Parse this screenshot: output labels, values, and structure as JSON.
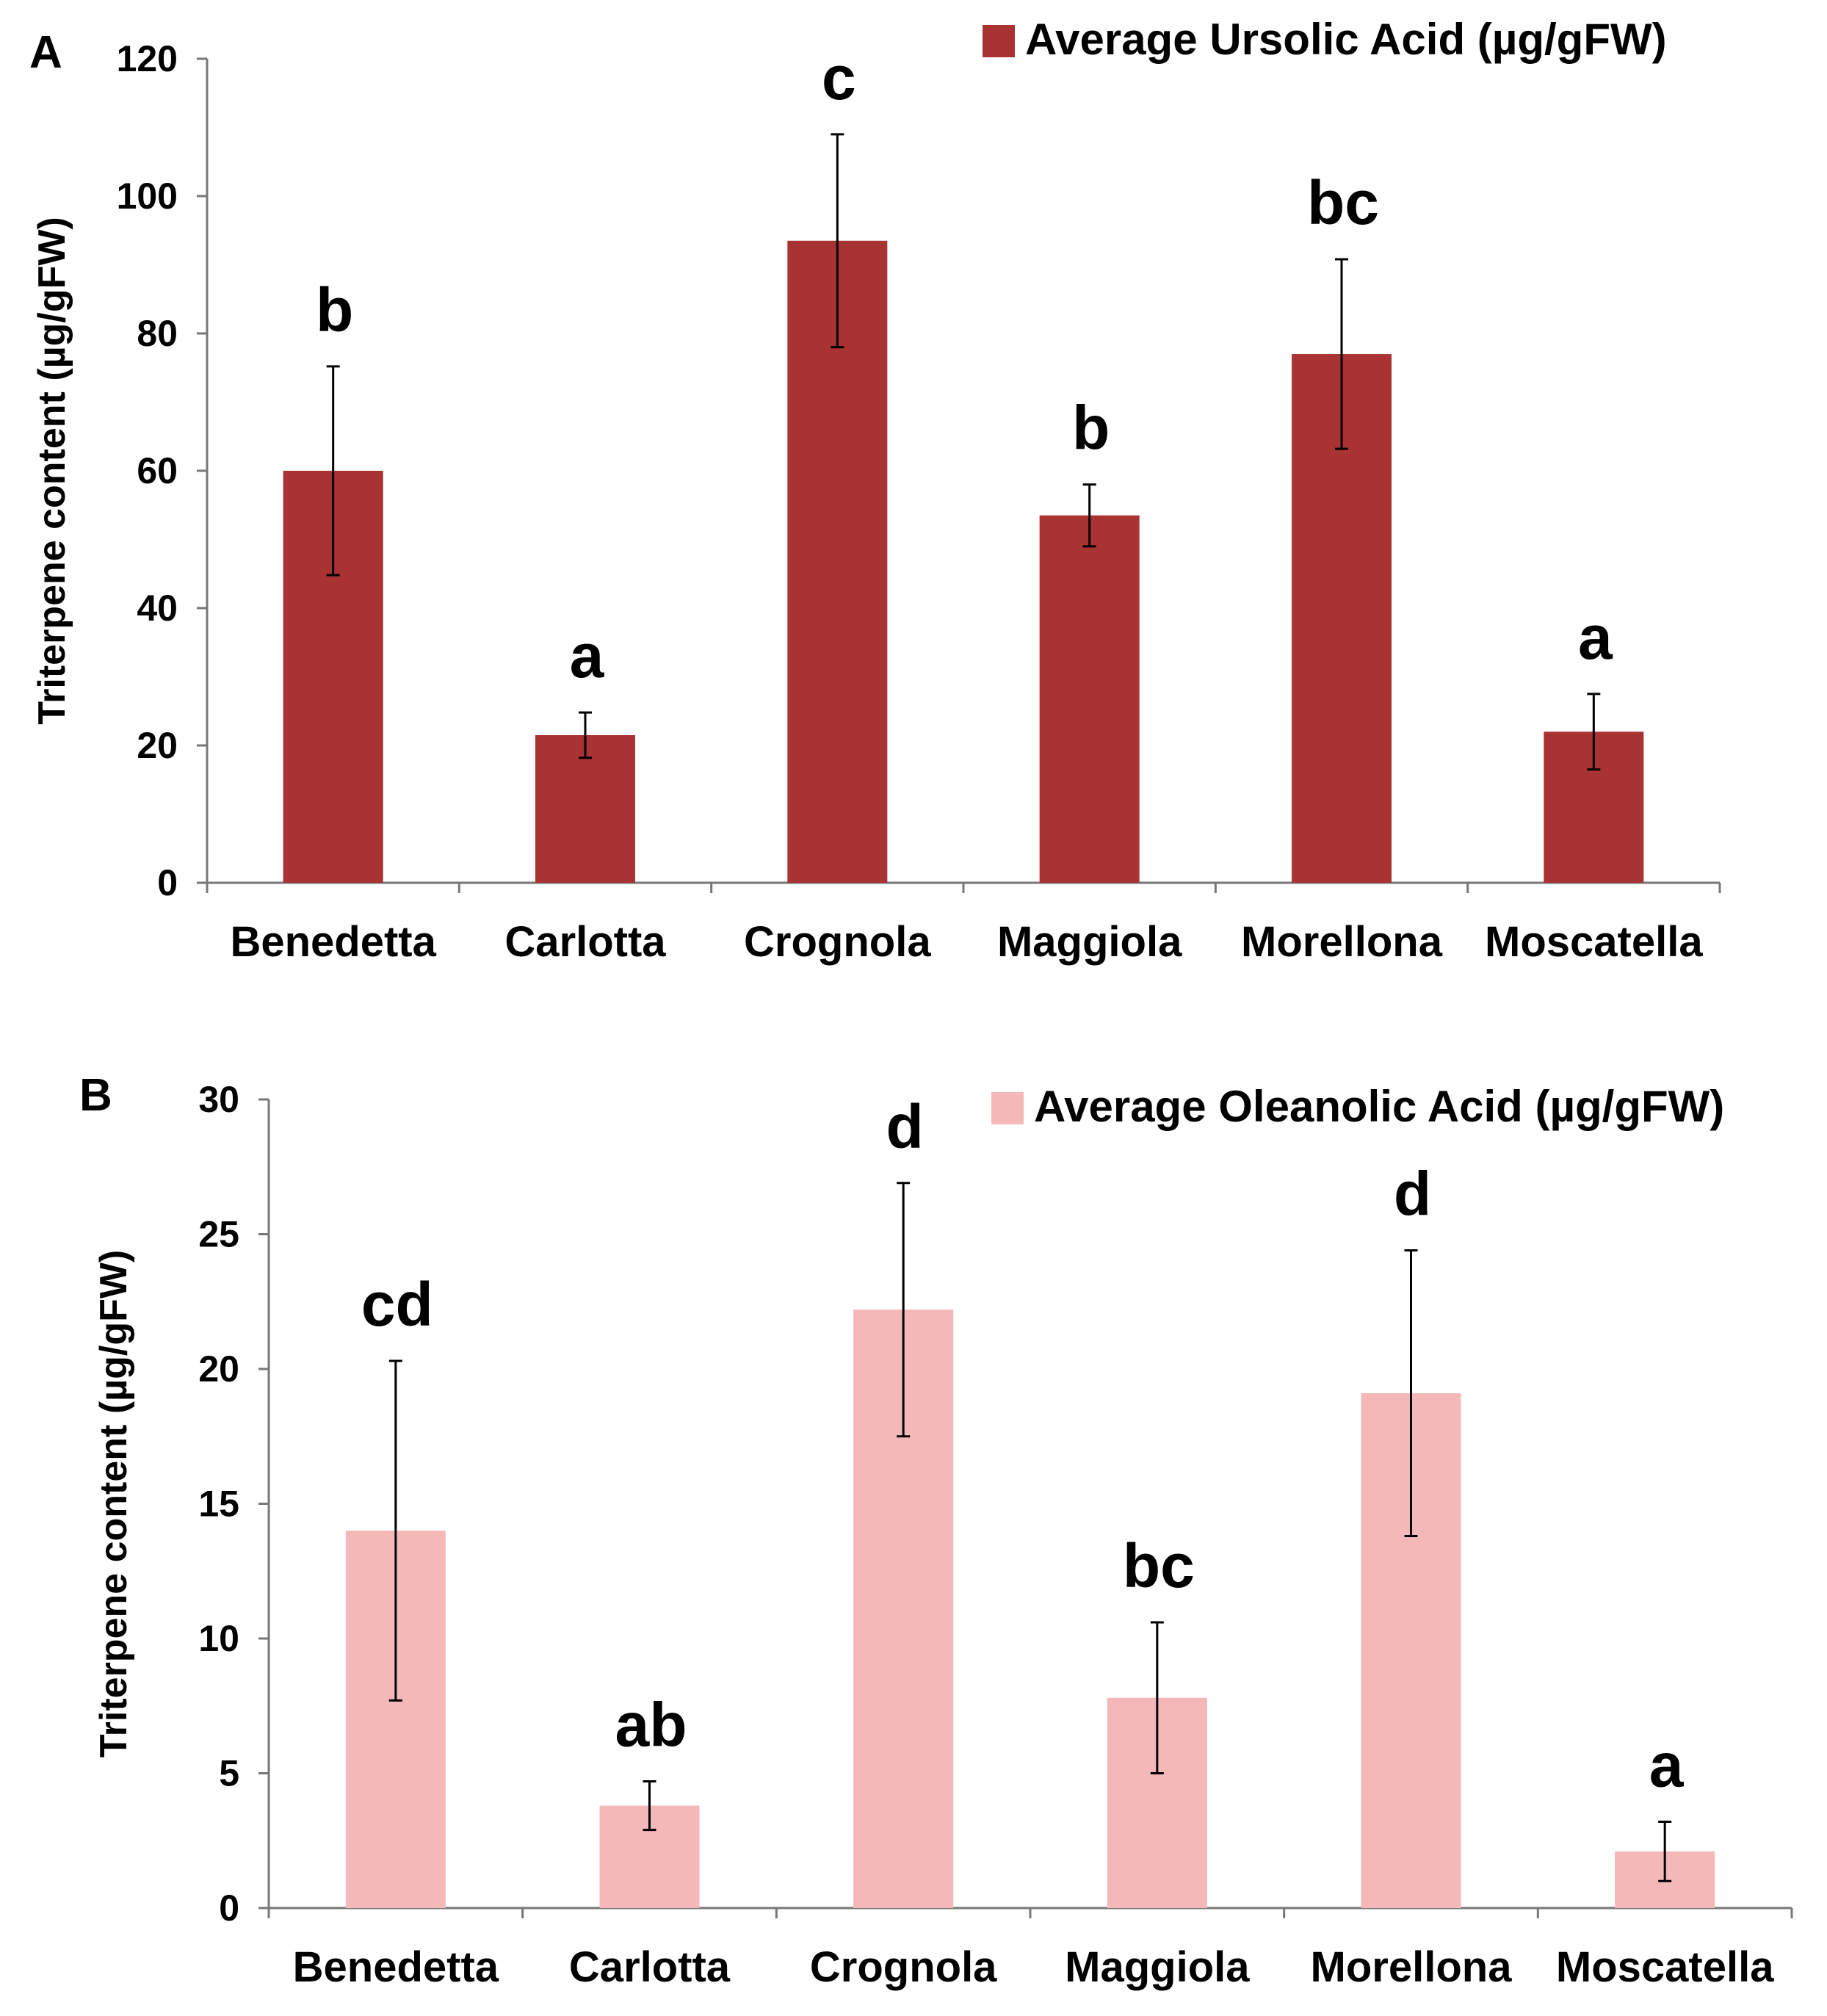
{
  "figure": {
    "panels": [
      "A",
      "B"
    ]
  },
  "chart_data": [
    {
      "panel": "A",
      "type": "bar",
      "categories": [
        "Benedetta",
        "Carlotta",
        "Crognola",
        "Maggiola",
        "Morellona",
        "Moscatella"
      ],
      "series": [
        {
          "name": "Average Ursolic Acid (µg/gFW)",
          "color": "#a93232",
          "values": [
            60,
            21.5,
            93.5,
            53.5,
            77,
            22
          ],
          "errors": [
            15.2,
            3.3,
            15.5,
            4.5,
            13.8,
            5.5
          ]
        }
      ],
      "significance": [
        "b",
        "a",
        "c",
        "b",
        "bc",
        "a"
      ],
      "ylabel": "Triterpene content (µg/gFW)",
      "xlabel": "",
      "ylim": [
        0,
        120
      ],
      "yticks": [
        "0",
        "20",
        "40",
        "60",
        "80",
        "100",
        "120"
      ],
      "legend_position": "top-right"
    },
    {
      "panel": "B",
      "type": "bar",
      "categories": [
        "Benedetta",
        "Carlotta",
        "Crognola",
        "Maggiola",
        "Morellona",
        "Moscatella"
      ],
      "series": [
        {
          "name": "Average Oleanolic Acid (µg/gFW)",
          "color": "#f4b8b8",
          "values": [
            14,
            3.8,
            22.2,
            7.8,
            19.1,
            2.1
          ],
          "errors": [
            6.3,
            0.9,
            4.7,
            2.8,
            5.3,
            1.1
          ]
        }
      ],
      "significance": [
        "cd",
        "ab",
        "d",
        "bc",
        "d",
        "a"
      ],
      "ylabel": "Triterpene content (µg/gFW)",
      "xlabel": "",
      "ylim": [
        0,
        30
      ],
      "yticks": [
        "0",
        "5",
        "10",
        "15",
        "20",
        "25",
        "30"
      ],
      "legend_position": "top-right"
    }
  ]
}
